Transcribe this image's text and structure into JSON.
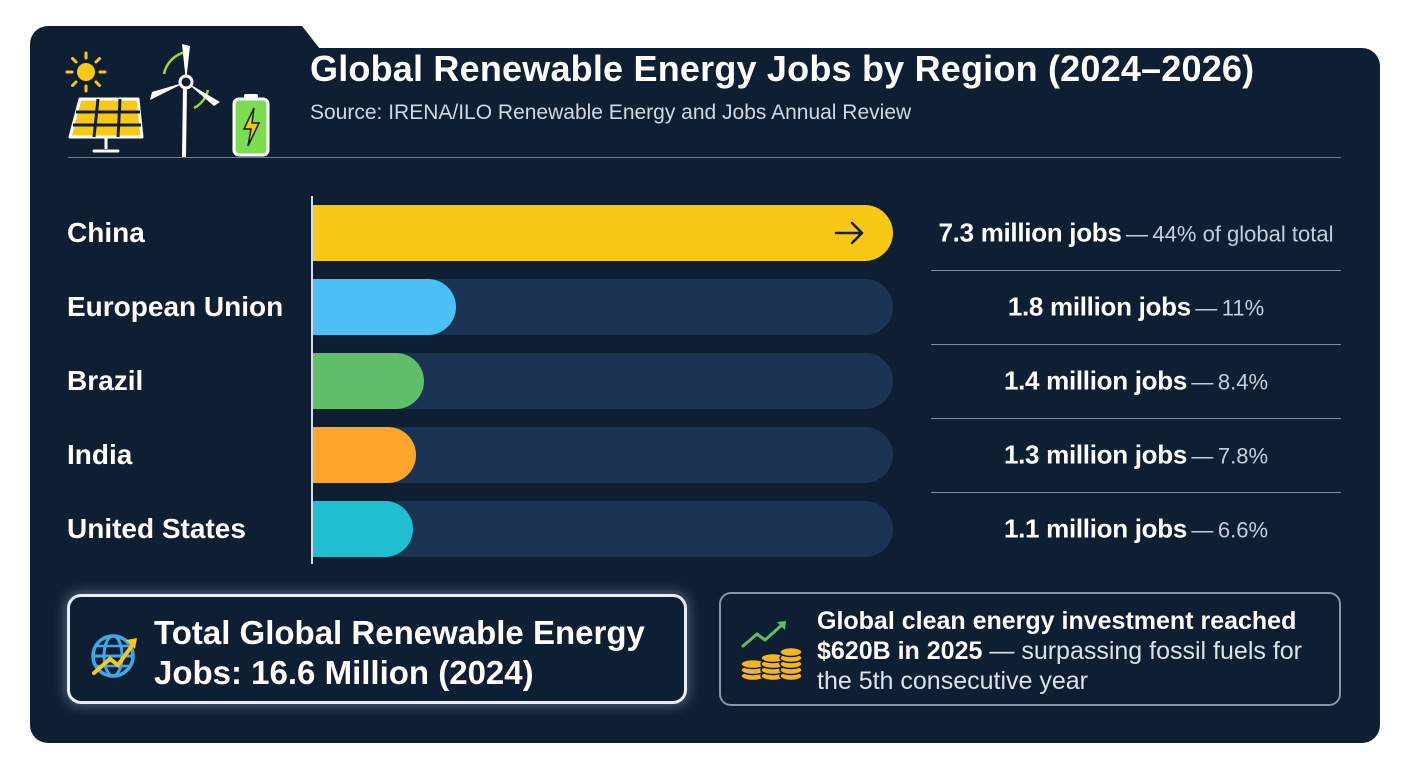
{
  "header": {
    "title": "Global Renewable Energy Jobs by Region (2024–2026)",
    "subtitle": "Source: IRENA/ILO Renewable Energy and Jobs Annual Review"
  },
  "chart_data": {
    "type": "bar",
    "orientation": "horizontal",
    "title": "Global Renewable Energy Jobs by Region (2024–2026)",
    "unit": "million jobs",
    "xlim": [
      0,
      7.3
    ],
    "grid": false,
    "categories": [
      "China",
      "European Union",
      "Brazil",
      "India",
      "United States"
    ],
    "values": [
      7.3,
      1.8,
      1.4,
      1.3,
      1.1
    ],
    "value_labels": [
      "7.3 million jobs",
      "1.8 million jobs",
      "1.4 million jobs",
      "1.3 million jobs",
      "1.1 million jobs"
    ],
    "share_labels": [
      "44% of global total",
      "11%",
      "8.4%",
      "7.8%",
      "6.6%"
    ],
    "colors": [
      "#f8c814",
      "#4cc0f4",
      "#5fbe69",
      "#ffa42c",
      "#1fbfd1"
    ],
    "track_color": "#1b3454"
  },
  "separator": "—",
  "total_box": {
    "text": "Total Global Renewable Energy Jobs: 16.6 Million (2024)",
    "icon": "globe-growth-icon"
  },
  "investment_box": {
    "bold_text": "Global clean energy investment reached $620B in 2025",
    "rest_text": "surpassing fossil fuels for the 5th consecutive year",
    "icon": "coins-growth-icon"
  },
  "icons": [
    "sun-icon",
    "solar-panel-icon",
    "wind-turbine-icon",
    "battery-icon"
  ],
  "colors": {
    "panel": "#0f1f33",
    "accent_yellow": "#f8c814",
    "battery_green": "#7ddc4f"
  }
}
